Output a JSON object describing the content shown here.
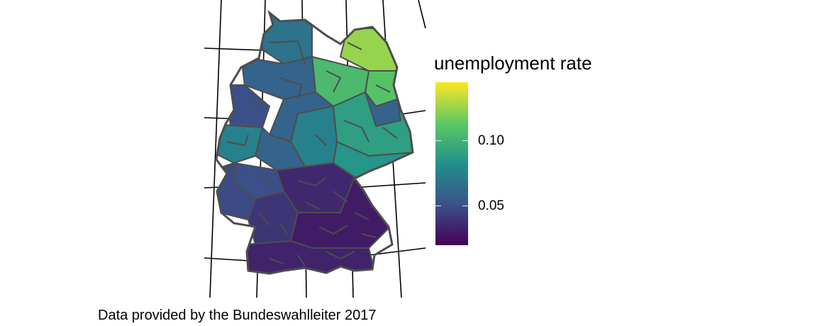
{
  "caption": "Data provided by the Bundeswahlleiter 2017",
  "legend": {
    "title": "unemployment rate",
    "scale_min": 0.02,
    "scale_max": 0.145,
    "ticks": [
      {
        "value": 0.1,
        "label": "0.10"
      },
      {
        "value": 0.05,
        "label": "0.05"
      }
    ],
    "colors": [
      "#440154",
      "#3b528b",
      "#21908d",
      "#5dc963",
      "#fde725"
    ]
  },
  "map": {
    "border_color": "#4d4d4d",
    "regions": [
      {
        "region": "northeast-lagoon",
        "rate": 0.125
      },
      {
        "region": "northeast-coast-east",
        "rate": 0.11
      },
      {
        "region": "northeast-inland",
        "rate": 0.105
      },
      {
        "region": "east-central",
        "rate": 0.09
      },
      {
        "region": "east-south",
        "rate": 0.085
      },
      {
        "region": "east-central-south",
        "rate": 0.075
      },
      {
        "region": "capital-area",
        "rate": 0.06
      },
      {
        "region": "north-coast",
        "rate": 0.068
      },
      {
        "region": "north-inland",
        "rate": 0.06
      },
      {
        "region": "central-north",
        "rate": 0.06
      },
      {
        "region": "west-north",
        "rate": 0.05
      },
      {
        "region": "west-central",
        "rate": 0.06
      },
      {
        "region": "west-ruhr",
        "rate": 0.075
      },
      {
        "region": "central",
        "rate": 0.05
      },
      {
        "region": "southwest",
        "rate": 0.048
      },
      {
        "region": "south-central",
        "rate": 0.035
      },
      {
        "region": "southwest-deep",
        "rate": 0.04
      },
      {
        "region": "southeast",
        "rate": 0.03
      },
      {
        "region": "south-border",
        "rate": 0.033
      }
    ]
  }
}
